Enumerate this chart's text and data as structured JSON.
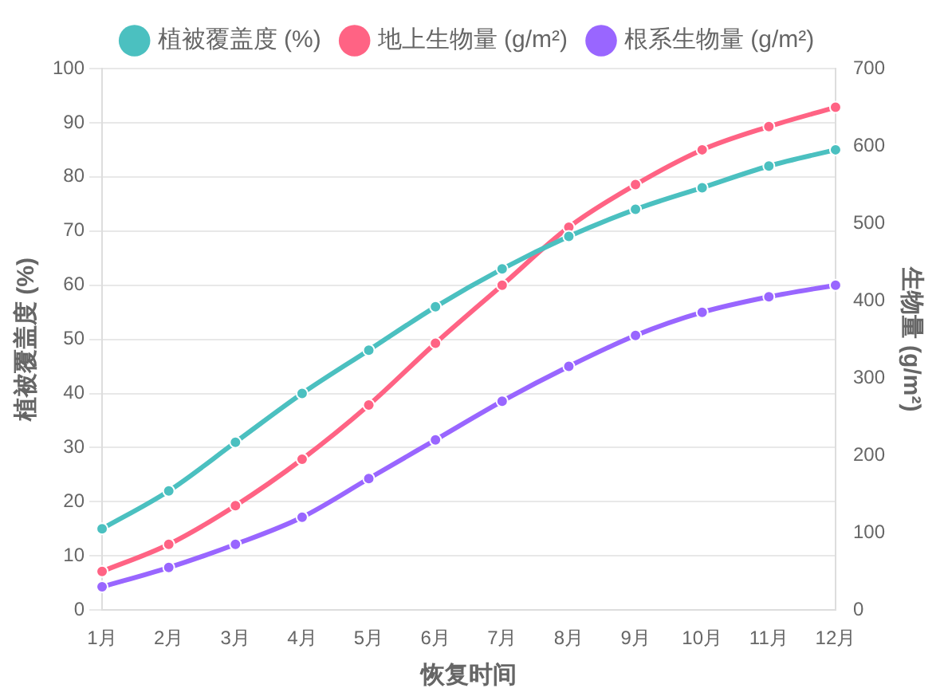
{
  "chart_data": {
    "type": "line",
    "xlabel": "恢复时间",
    "ylabel": "植被覆盖度 (%)",
    "y2label": "生物量 (g/m²)",
    "categories": [
      "1月",
      "2月",
      "3月",
      "4月",
      "5月",
      "6月",
      "7月",
      "8月",
      "9月",
      "10月",
      "11月",
      "12月"
    ],
    "series": [
      {
        "name": "植被覆盖度 (%)",
        "color": "#4bc0c0",
        "values": [
          15,
          22,
          31,
          40,
          48,
          56,
          63,
          69,
          74,
          78,
          82,
          85
        ]
      },
      {
        "name": "地上生物量 (g/m²)",
        "color": "#ff6384",
        "axis": "y2",
        "values": [
          50,
          85,
          135,
          195,
          265,
          345,
          420,
          495,
          550,
          595,
          625,
          650
        ]
      },
      {
        "name": "根系生物量 (g/m²)",
        "color": "#9966ff",
        "axis": "y2",
        "values": [
          30,
          55,
          85,
          120,
          170,
          220,
          270,
          315,
          355,
          385,
          405,
          420
        ]
      }
    ],
    "ylim": [
      0,
      100
    ],
    "yticks": [
      0,
      10,
      20,
      30,
      40,
      50,
      60,
      70,
      80,
      90,
      100
    ],
    "y2lim": [
      0,
      700
    ],
    "y2ticks": [
      0,
      100,
      200,
      300,
      400,
      500,
      600,
      700
    ],
    "grid": "y",
    "legend": "top",
    "marker": "circle",
    "line_style": "solid"
  }
}
